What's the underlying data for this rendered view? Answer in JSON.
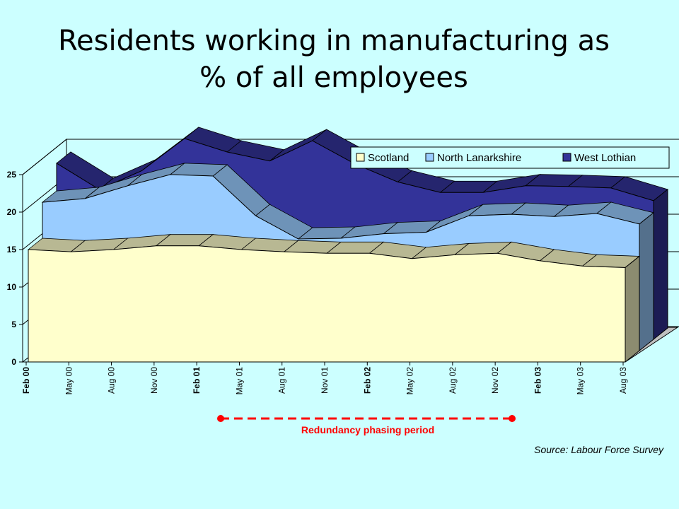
{
  "page": {
    "title_line1": "Residents working in manufacturing as",
    "title_line2": "% of all employees",
    "annotation": "Redundancy phasing period",
    "source": "Source: Labour Force Survey"
  },
  "colors": {
    "background": "#ccffff",
    "annotation": "#ff0000"
  },
  "chart_data": {
    "type": "area",
    "title": "Residents working in manufacturing as % of all employees",
    "xlabel": "",
    "ylabel": "",
    "ylim": [
      0,
      25
    ],
    "yticks": [
      0,
      5,
      10,
      15,
      20,
      25
    ],
    "grid": true,
    "legend_position": "top-right",
    "categories": [
      "Feb 00",
      "May 00",
      "Aug 00",
      "Nov 00",
      "Feb 01",
      "May 01",
      "Aug 01",
      "Nov 01",
      "Feb 02",
      "May 02",
      "Aug 02",
      "Nov 02",
      "Feb 03",
      "May 03",
      "Aug 03"
    ],
    "series": [
      {
        "name": "Scotland",
        "color": "#ffffcc",
        "values": [
          15.0,
          14.7,
          15.0,
          15.5,
          15.5,
          15.0,
          14.7,
          14.5,
          14.5,
          13.8,
          14.3,
          14.5,
          13.5,
          12.8,
          12.6
        ]
      },
      {
        "name": "North Lanarkshire",
        "color": "#99ccff",
        "values": [
          19.8,
          20.3,
          22.0,
          23.5,
          23.3,
          18.0,
          14.9,
          15.0,
          15.6,
          15.8,
          18.0,
          18.2,
          17.9,
          18.3,
          16.9
        ]
      },
      {
        "name": "West Lothian",
        "color": "#333399",
        "values": [
          23.5,
          20.0,
          22.5,
          26.8,
          25.0,
          23.8,
          26.5,
          23.4,
          21.0,
          19.6,
          19.6,
          20.5,
          20.4,
          20.2,
          18.5
        ]
      }
    ]
  }
}
